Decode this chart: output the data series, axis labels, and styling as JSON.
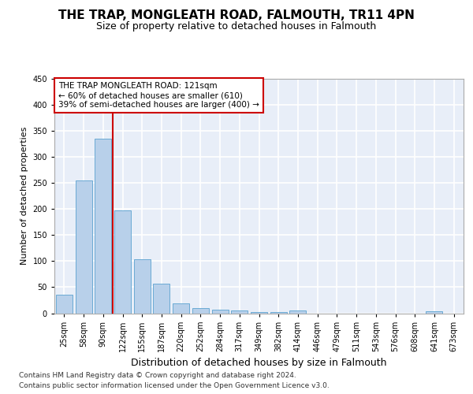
{
  "title": "THE TRAP, MONGLEATH ROAD, FALMOUTH, TR11 4PN",
  "subtitle": "Size of property relative to detached houses in Falmouth",
  "xlabel": "Distribution of detached houses by size in Falmouth",
  "ylabel": "Number of detached properties",
  "categories": [
    "25sqm",
    "58sqm",
    "90sqm",
    "122sqm",
    "155sqm",
    "187sqm",
    "220sqm",
    "252sqm",
    "284sqm",
    "317sqm",
    "349sqm",
    "382sqm",
    "414sqm",
    "446sqm",
    "479sqm",
    "511sqm",
    "543sqm",
    "576sqm",
    "608sqm",
    "641sqm",
    "673sqm"
  ],
  "values": [
    35,
    255,
    335,
    197,
    103,
    57,
    19,
    10,
    7,
    5,
    3,
    2,
    5,
    0,
    0,
    0,
    0,
    0,
    0,
    4,
    0
  ],
  "bar_color": "#b8d0ea",
  "bar_edge_color": "#6aaad4",
  "vline_color": "#cc0000",
  "vline_x": 2.5,
  "annotation_line1": "THE TRAP MONGLEATH ROAD: 121sqm",
  "annotation_line2": "← 60% of detached houses are smaller (610)",
  "annotation_line3": "39% of semi-detached houses are larger (400) →",
  "annotation_box_color": "#ffffff",
  "annotation_box_edge_color": "#cc0000",
  "ylim": [
    0,
    450
  ],
  "yticks": [
    0,
    50,
    100,
    150,
    200,
    250,
    300,
    350,
    400,
    450
  ],
  "background_color": "#e8eef8",
  "grid_color": "#ffffff",
  "footer_line1": "Contains HM Land Registry data © Crown copyright and database right 2024.",
  "footer_line2": "Contains public sector information licensed under the Open Government Licence v3.0.",
  "title_fontsize": 11,
  "subtitle_fontsize": 9,
  "ylabel_fontsize": 8,
  "xlabel_fontsize": 9,
  "tick_fontsize": 7,
  "annotation_fontsize": 7.5,
  "footer_fontsize": 6.5
}
